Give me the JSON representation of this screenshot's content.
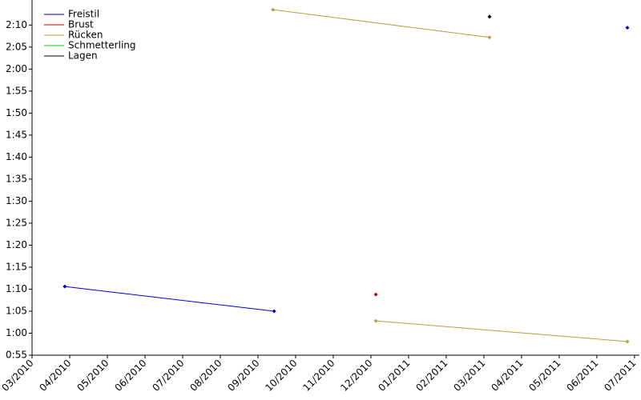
{
  "chart_data": {
    "type": "line",
    "xlim": [
      0,
      16.13
    ],
    "xticks": [
      {
        "value": 0,
        "label": "03/2010"
      },
      {
        "value": 1,
        "label": "04/2010"
      },
      {
        "value": 2,
        "label": "05/2010"
      },
      {
        "value": 3,
        "label": "06/2010"
      },
      {
        "value": 4,
        "label": "07/2010"
      },
      {
        "value": 5,
        "label": "08/2010"
      },
      {
        "value": 6,
        "label": "09/2010"
      },
      {
        "value": 7,
        "label": "10/2010"
      },
      {
        "value": 8,
        "label": "11/2010"
      },
      {
        "value": 9,
        "label": "12/2010"
      },
      {
        "value": 10,
        "label": "01/2011"
      },
      {
        "value": 11,
        "label": "02/2011"
      },
      {
        "value": 12,
        "label": "03/2011"
      },
      {
        "value": 13,
        "label": "04/2011"
      },
      {
        "value": 14,
        "label": "05/2011"
      },
      {
        "value": 15,
        "label": "06/2011"
      },
      {
        "value": 16,
        "label": "07/2011"
      }
    ],
    "ylim": [
      55,
      135.7
    ],
    "yticks": [
      {
        "value": 55,
        "label": "0:55"
      },
      {
        "value": 60,
        "label": "1:00"
      },
      {
        "value": 65,
        "label": "1:05"
      },
      {
        "value": 70,
        "label": "1:10"
      },
      {
        "value": 75,
        "label": "1:15"
      },
      {
        "value": 80,
        "label": "1:20"
      },
      {
        "value": 85,
        "label": "1:25"
      },
      {
        "value": 90,
        "label": "1:30"
      },
      {
        "value": 95,
        "label": "1:35"
      },
      {
        "value": 100,
        "label": "1:40"
      },
      {
        "value": 105,
        "label": "1:45"
      },
      {
        "value": 110,
        "label": "1:50"
      },
      {
        "value": 115,
        "label": "1:55"
      },
      {
        "value": 120,
        "label": "2:00"
      },
      {
        "value": 125,
        "label": "2:05"
      },
      {
        "value": 130,
        "label": "2:10"
      }
    ],
    "legend": "upper-left",
    "series": [
      {
        "name": "Freistil",
        "color": "#0000cc",
        "x": [
          0.87,
          6.43,
          null,
          15.81
        ],
        "values": [
          70.6,
          65.0,
          null,
          129.4
        ]
      },
      {
        "name": "Brust",
        "color": "#cc0000",
        "x": [
          9.13
        ],
        "values": [
          68.8
        ]
      },
      {
        "name": "Rücken",
        "color": "#b8a040",
        "x": [
          6.4,
          12.15,
          null,
          9.13,
          15.81
        ],
        "values": [
          133.5,
          127.2,
          null,
          62.8,
          58.1
        ]
      },
      {
        "name": "Schmetterling",
        "color": "#00cc00",
        "x": [],
        "values": []
      },
      {
        "name": "Lagen",
        "color": "#000000",
        "x": [
          12.15
        ],
        "values": [
          131.9
        ]
      }
    ]
  }
}
